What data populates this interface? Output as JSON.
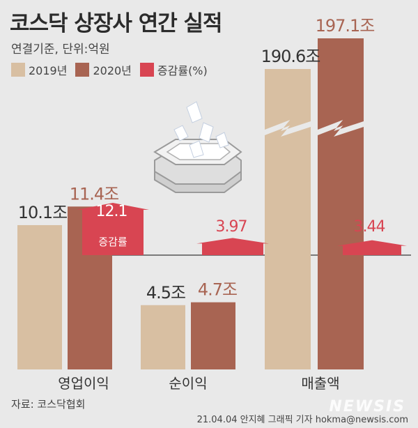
{
  "title": "코스닥 상장사 연간 실적",
  "subtitle": "연결기준, 단위:억원",
  "source": "자료: 코스닥협회",
  "credit": "21.04.04 안지혜 그래픽 기자 hokma@newsis.com",
  "watermark": "NEWSIS",
  "colors": {
    "y2019": "#d8bfa2",
    "y2020": "#a86452",
    "rate": "#d84552"
  },
  "chart_data": {
    "type": "bar",
    "categories": [
      "영업이익",
      "순이익",
      "매출액"
    ],
    "series": [
      {
        "name": "2019년",
        "values": [
          10.1,
          4.5,
          190.6
        ],
        "labels": [
          "10.1조",
          "4.5조",
          "190.6조"
        ]
      },
      {
        "name": "2020년",
        "values": [
          11.4,
          4.7,
          197.1
        ],
        "labels": [
          "11.4조",
          "4.7조",
          "197.1조"
        ]
      },
      {
        "name": "증감률(%)",
        "values": [
          12.1,
          3.97,
          3.44
        ],
        "labels": [
          "12.1",
          "3.97",
          "3.44"
        ]
      }
    ],
    "rate_box_label": "증감률",
    "axis_break": "매출액"
  }
}
